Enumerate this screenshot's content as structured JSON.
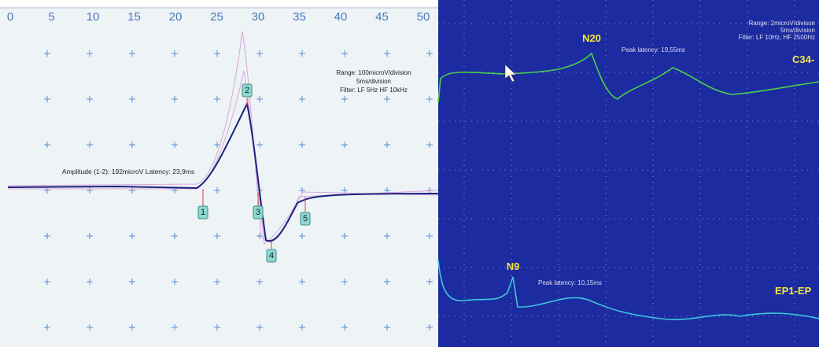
{
  "left": {
    "scale": [
      0,
      5,
      10,
      15,
      20,
      25,
      30,
      35,
      40,
      45,
      50
    ],
    "info": [
      "Range: 100microV/division",
      "5ms/division",
      "Filter: LF 5Hz HF 10kHz"
    ],
    "amplitude": "Amplitude (1-2): 192microV Latency: 23,9ms",
    "markers": [
      "1",
      "2",
      "3",
      "4",
      "5"
    ]
  },
  "right": {
    "info": [
      "Range: 2microV/divison",
      "5ms/division",
      "Filter: LF 10Hz, HF 2500Hz"
    ],
    "upper": {
      "peak": "N20",
      "latency": "Peak latency: 19,55ms",
      "channel": "C34-"
    },
    "lower": {
      "peak": "N9",
      "latency": "Peak latency: 10,15ms",
      "channel": "EP1-EP"
    }
  }
}
